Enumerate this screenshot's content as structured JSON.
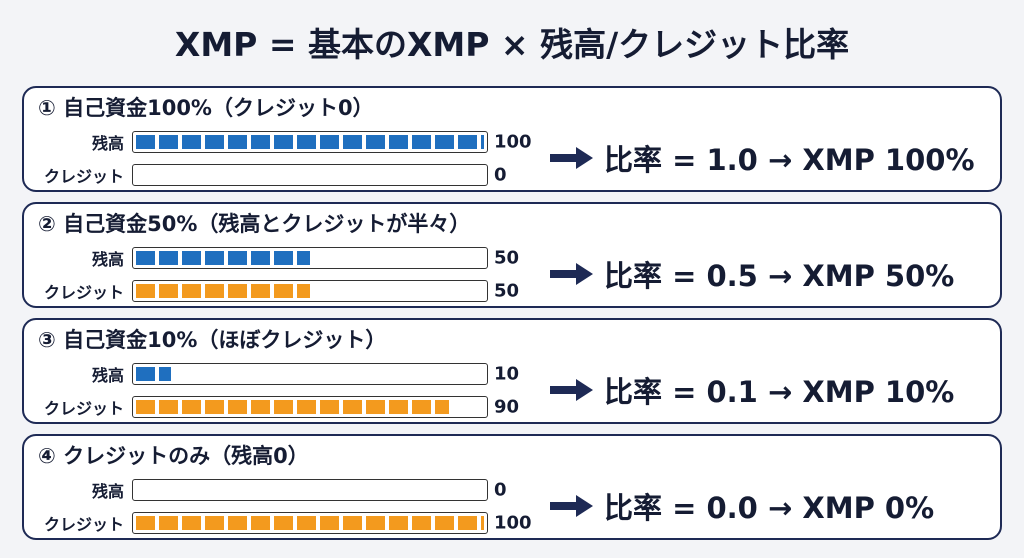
{
  "header": {
    "title": "XMP = 基本のXMP × 残高/クレジット比率"
  },
  "panels": [
    {
      "heading": "① 自己資金100%（クレジット0）",
      "rows": [
        {
          "label": "残高",
          "value": 100,
          "color": "#1f6fbf"
        },
        {
          "label": "クレジット",
          "value": 0,
          "color": "#f39a1e"
        }
      ],
      "result": "比率 = 1.0 → XMP 100%"
    },
    {
      "heading": "② 自己資金50%（残高とクレジットが半々）",
      "rows": [
        {
          "label": "残高",
          "value": 50,
          "color": "#1f6fbf"
        },
        {
          "label": "クレジット",
          "value": 50,
          "color": "#f39a1e"
        }
      ],
      "result": "比率 = 0.5 → XMP 50%"
    },
    {
      "heading": "③ 自己資金10%（ほぼクレジット）",
      "rows": [
        {
          "label": "残高",
          "value": 10,
          "color": "#1f6fbf"
        },
        {
          "label": "クレジット",
          "value": 90,
          "color": "#f39a1e"
        }
      ],
      "result": "比率 = 0.1 → XMP 10%"
    },
    {
      "heading": "④ クレジットのみ（残高0）",
      "rows": [
        {
          "label": "残高",
          "value": 0,
          "color": "#1f6fbf"
        },
        {
          "label": "クレジット",
          "value": 100,
          "color": "#f39a1e"
        }
      ],
      "result": "比率 = 0.0 → XMP 0%"
    }
  ]
}
